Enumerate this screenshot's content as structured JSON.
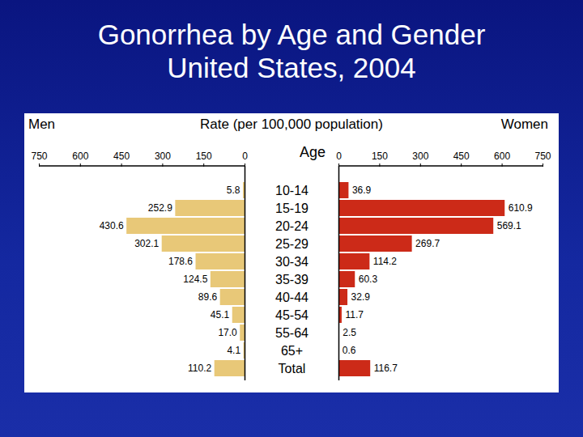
{
  "chart_data": {
    "type": "bar",
    "orientation": "horizontal",
    "title": "Gonorrhea by Age and Gender",
    "subtitle": "United States, 2004",
    "x_label": "Rate (per 100,000 population)",
    "y_label": "Age",
    "categories": [
      "10-14",
      "15-19",
      "20-24",
      "25-29",
      "30-34",
      "35-39",
      "40-44",
      "45-54",
      "55-64",
      "65+",
      "Total"
    ],
    "series": [
      {
        "name": "Men",
        "color": "#e8c878",
        "values": [
          5.8,
          252.9,
          430.6,
          302.1,
          178.6,
          124.5,
          89.6,
          45.1,
          17.0,
          4.1,
          110.2
        ],
        "value_labels": [
          "5.8",
          "252.9",
          "430.6",
          "302.1",
          "178.6",
          "124.5",
          "89.6",
          "45.1",
          "17.0",
          "4.1",
          "110.2"
        ]
      },
      {
        "name": "Women",
        "color": "#cc2a18",
        "values": [
          36.9,
          610.9,
          569.1,
          269.7,
          114.2,
          60.3,
          32.9,
          11.7,
          2.5,
          0.6,
          116.7
        ]
      }
    ],
    "xlim": [
      0,
      750
    ],
    "xticks": [
      0,
      150,
      300,
      450,
      600,
      750
    ],
    "data_labels": true
  }
}
